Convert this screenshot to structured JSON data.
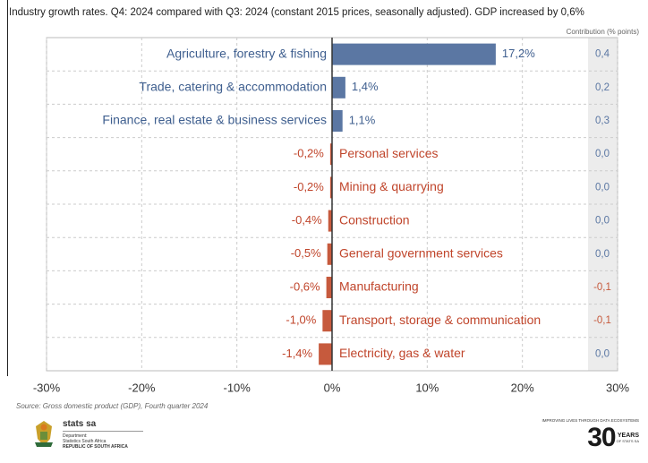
{
  "header": {
    "subtitle": "Industry growth rates. Q4: 2024 compared with Q3: 2024 (constant 2015 prices, seasonally adjusted). GDP increased by 0,6%",
    "contribution_label": "Contribution (% points)"
  },
  "chart_data": {
    "type": "bar",
    "orientation": "horizontal",
    "categories": [
      "Agriculture, forestry & fishing",
      "Trade, catering & accommodation",
      "Finance, real estate & business services",
      "Personal services",
      "Mining & quarrying",
      "Construction",
      "General government services",
      "Manufacturing",
      "Transport, storage & communication",
      "Electricity, gas & water"
    ],
    "values": [
      17.2,
      1.4,
      1.1,
      -0.2,
      -0.2,
      -0.4,
      -0.5,
      -0.6,
      -1.0,
      -1.4
    ],
    "value_labels": [
      "17,2%",
      "1,4%",
      "1,1%",
      "-0,2%",
      "-0,2%",
      "-0,4%",
      "-0,5%",
      "-0,6%",
      "-1,0%",
      "-1,4%"
    ],
    "contributions": [
      "0,4",
      "0,2",
      "0,3",
      "0,0",
      "0,0",
      "0,0",
      "0,0",
      "-0,1",
      "-0,1",
      "0,0"
    ],
    "xlim": [
      -30,
      30
    ],
    "xticks": [
      -30,
      -20,
      -10,
      0,
      10,
      20,
      30
    ],
    "xtick_labels": [
      "-30%",
      "-20%",
      "-10%",
      "0%",
      "10%",
      "20%",
      "30%"
    ],
    "grid": true,
    "colors": {
      "positive": "#5b77a3",
      "negative": "#c65a3d",
      "positive_text": "#3f5f8f",
      "negative_text": "#c0452b",
      "contribution_text": "#5b77a3",
      "contribution_negative_text": "#c65a3d",
      "contribution_bg": "#ececec"
    }
  },
  "source": "Source: Gross domestic product (GDP), Fourth quarter 2024",
  "footer": {
    "org_name": "stats sa",
    "org_lines": [
      "Department:",
      "Statistics South Africa",
      "REPUBLIC OF SOUTH AFRICA"
    ],
    "tagline": "IMPROVING LIVES THROUGH DATA ECOSYSTEMS",
    "anniversary_number": "30",
    "anniversary_word": "YEARS",
    "anniversary_sub": "OF STATS SA"
  }
}
